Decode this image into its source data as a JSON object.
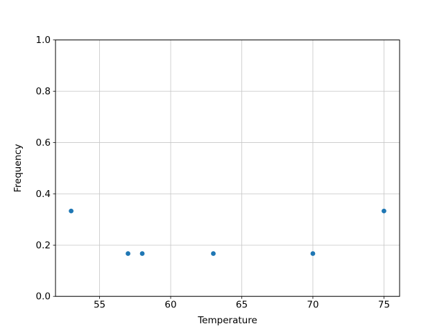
{
  "figure": {
    "background": "#ffffff"
  },
  "chart_data": {
    "type": "scatter",
    "title": "",
    "xlabel": "Temperature",
    "ylabel": "Frequency",
    "x": [
      53,
      57,
      58,
      63,
      70,
      75
    ],
    "y": [
      0.333,
      0.167,
      0.167,
      0.167,
      0.167,
      0.333
    ],
    "xlim": [
      51.9,
      76.1
    ],
    "ylim": [
      0.0,
      1.0
    ],
    "xticks": [
      55,
      60,
      65,
      70,
      75
    ],
    "xtick_labels": [
      "55",
      "60",
      "65",
      "70",
      "75"
    ],
    "yticks": [
      0.0,
      0.2,
      0.4,
      0.6,
      0.8,
      1.0
    ],
    "ytick_labels": [
      "0.0",
      "0.2",
      "0.4",
      "0.6",
      "0.8",
      "1.0"
    ],
    "grid": true,
    "legend": "none",
    "marker": "circle",
    "marker_color": "#1f77b4",
    "grid_color": "#c6c6c6",
    "spine_color": "#000000"
  }
}
